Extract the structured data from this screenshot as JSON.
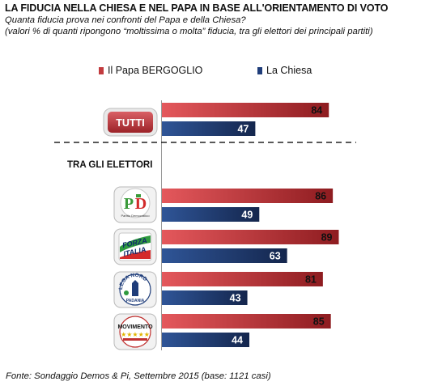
{
  "title": "LA FIDUCIA NELLA CHIESA E NEL PAPA IN BASE ALL'ORIENTAMENTO DI VOTO",
  "subtitle": "Quanta fiducia prova nei confronti del Papa e della Chiesa?",
  "subtitle2": "(valori % di quanti ripongono “moltissima o molta” fiducia, tra gli elettori dei principali partiti)",
  "section_label": "TRA GLI ELETTORI",
  "footer": "Fonte: Sondaggio Demos & Pi, Settembre 2015 (base: 1121 casi)",
  "colors": {
    "papa": "#c23b3e",
    "chiesa": "#1f3d7a"
  },
  "chart_data": {
    "type": "bar",
    "orientation": "horizontal",
    "categories": [
      "TUTTI",
      "PD",
      "Forza Italia",
      "Lega Nord Padania",
      "MoVimento 5 Stelle"
    ],
    "series": [
      {
        "name": "Il Papa BERGOGLIO",
        "values": [
          84,
          86,
          89,
          81,
          85
        ]
      },
      {
        "name": "La Chiesa",
        "values": [
          47,
          49,
          63,
          43,
          44
        ]
      }
    ],
    "xlim": [
      0,
      100
    ],
    "legend": "top"
  },
  "logos": {
    "tutti": "TUTTI",
    "pd": "PD",
    "fi": "FORZA ITALIA",
    "lega": "LEGA NORD PADANIA",
    "m5s": "MOVIMENTO 5 STELLE"
  }
}
